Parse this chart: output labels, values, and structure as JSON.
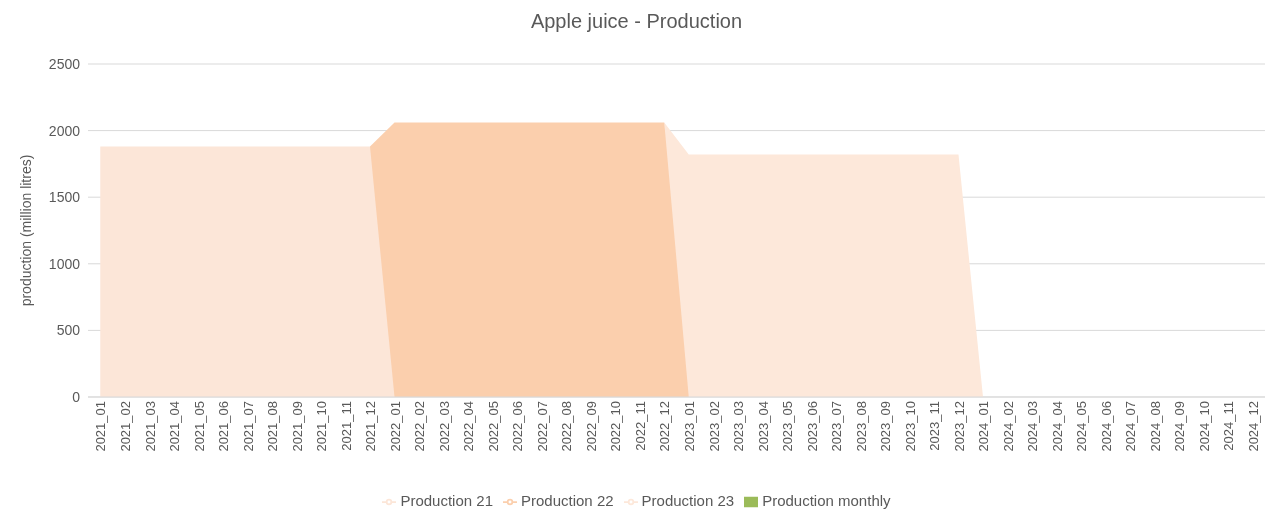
{
  "chart_data": {
    "type": "area",
    "title": "Apple juice - Production",
    "ylabel": "production (million litres)",
    "categories": [
      "2021_01",
      "2021_02",
      "2021_03",
      "2021_04",
      "2021_05",
      "2021_06",
      "2021_07",
      "2021_08",
      "2021_09",
      "2021_10",
      "2021_11",
      "2021_12",
      "2022_01",
      "2022_02",
      "2022_03",
      "2022_04",
      "2022_05",
      "2022_06",
      "2022_07",
      "2022_08",
      "2022_09",
      "2022_10",
      "2022_11",
      "2022_12",
      "2023_01",
      "2023_02",
      "2023_03",
      "2023_04",
      "2023_05",
      "2023_06",
      "2023_07",
      "2023_08",
      "2023_09",
      "2023_10",
      "2023_11",
      "2023_12",
      "2024_01",
      "2024_02",
      "2024_03",
      "2024_04",
      "2024_05",
      "2024_06",
      "2024_07",
      "2024_08",
      "2024_09",
      "2024_10",
      "2024_11",
      "2024_12"
    ],
    "series": [
      {
        "name": "Production monthly",
        "type": "bar",
        "color": "#9bbb59",
        "values": [
          null,
          null,
          null,
          null,
          null,
          null,
          null,
          null,
          null,
          null,
          null,
          null,
          null,
          null,
          null,
          null,
          null,
          null,
          null,
          null,
          null,
          null,
          null,
          null,
          null,
          null,
          null,
          null,
          null,
          null,
          null,
          null,
          null,
          null,
          null,
          null,
          null,
          null,
          null,
          null,
          null,
          null,
          null,
          null,
          null,
          null,
          null,
          null
        ]
      },
      {
        "name": "Production 21",
        "color": "#fce6d8",
        "values": [
          1880,
          1880,
          1880,
          1880,
          1880,
          1880,
          1880,
          1880,
          1880,
          1880,
          1880,
          1880,
          0,
          null,
          null,
          null,
          null,
          null,
          null,
          null,
          null,
          null,
          null,
          null,
          null,
          null,
          null,
          null,
          null,
          null,
          null,
          null,
          null,
          null,
          null,
          null,
          null,
          null,
          null,
          null,
          null,
          null,
          null,
          null,
          null,
          null,
          null,
          null
        ]
      },
      {
        "name": "Production 22",
        "color": "#fbcfad",
        "values": [
          null,
          null,
          null,
          null,
          null,
          null,
          null,
          null,
          null,
          null,
          null,
          1880,
          2060,
          2060,
          2060,
          2060,
          2060,
          2060,
          2060,
          2060,
          2060,
          2060,
          2060,
          2060,
          0,
          null,
          null,
          null,
          null,
          null,
          null,
          null,
          null,
          null,
          null,
          null,
          null,
          null,
          null,
          null,
          null,
          null,
          null,
          null,
          null,
          null,
          null,
          null
        ]
      },
      {
        "name": "Production 23",
        "color": "#fde8da",
        "values": [
          null,
          null,
          null,
          null,
          null,
          null,
          null,
          null,
          null,
          null,
          null,
          null,
          null,
          null,
          null,
          null,
          null,
          null,
          null,
          null,
          null,
          null,
          null,
          2060,
          1820,
          1820,
          1820,
          1820,
          1820,
          1820,
          1820,
          1820,
          1820,
          1820,
          1820,
          1820,
          0,
          null,
          null,
          null,
          null,
          null,
          null,
          null,
          null,
          null,
          null,
          null
        ]
      }
    ],
    "ylim": [
      0,
      2500
    ],
    "yticks": [
      0,
      500,
      1000,
      1500,
      2000,
      2500
    ],
    "grid": "y",
    "legend": "bottom"
  }
}
